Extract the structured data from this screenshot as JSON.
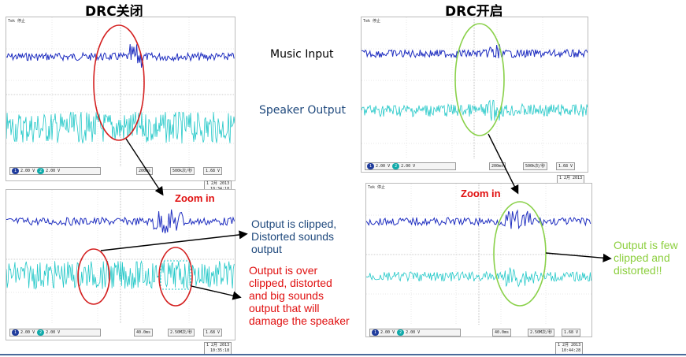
{
  "titles": {
    "left": "DRC关闭",
    "right": "DRC开启"
  },
  "labels": {
    "music_input": "Music Input",
    "speaker_output": "Speaker Output"
  },
  "annotations": {
    "zoom_left": "Zoom in",
    "zoom_right": "Zoom in",
    "clipped": [
      "Output is clipped,",
      "Distorted sounds",
      "output"
    ],
    "over_clipped": [
      "Output is over",
      "clipped,  distorted",
      "and big sounds",
      "output that will",
      "damage the speaker"
    ],
    "few_clipped": [
      "Output is few",
      "clipped and",
      "distorted!!"
    ]
  },
  "scope": {
    "brand": "Tek",
    "state": "停止",
    "ch1_scale": "2.00 V",
    "ch2_scale": "2.00 V",
    "trigger": "1.68 V",
    "time_top": "200ms",
    "rate_top": "500k次/秒",
    "points": "1M 点",
    "time_zoom": "40.0ms",
    "rate_zoom": "2.50M次/秒",
    "date": "1 2月 2013",
    "time_left_top": "10:34:18",
    "time_left_bottom": "10:35:18",
    "time_right_bottom": "10:44:28"
  },
  "colors": {
    "ch1": "#1f2ec0",
    "ch2": "#22c8c8",
    "highlight_bad": "#d42020",
    "highlight_good": "#8ad14a",
    "arrow": "#000000",
    "text_blue": "#1f497d",
    "text_red": "#e01010",
    "text_green": "#8ccf3e"
  }
}
